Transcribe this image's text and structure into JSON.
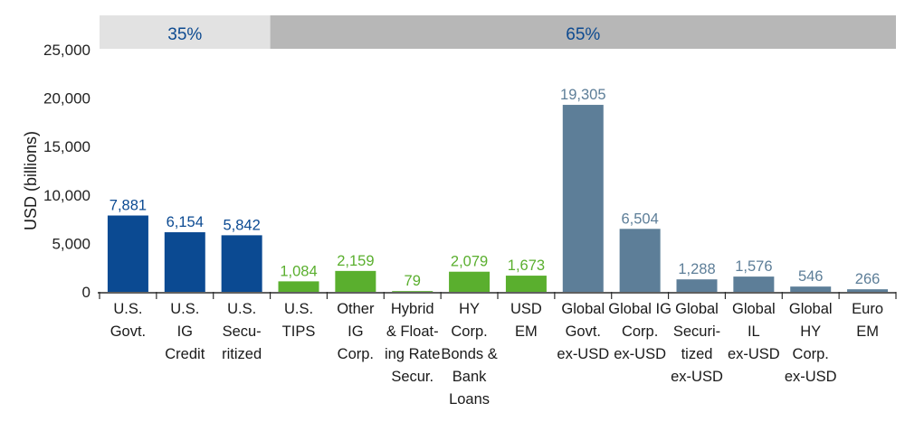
{
  "chart_data": {
    "type": "bar",
    "title": "",
    "xlabel": "",
    "ylabel": "USD (billions)",
    "ylim": [
      0,
      25000
    ],
    "yticks": [
      0,
      5000,
      10000,
      15000,
      20000,
      25000
    ],
    "ytick_labels": [
      "0",
      "5,000",
      "10,000",
      "15,000",
      "20,000",
      "25,000"
    ],
    "grid": false,
    "categories": [
      [
        "U.S.",
        "Govt."
      ],
      [
        "U.S.",
        "IG",
        "Credit"
      ],
      [
        "U.S.",
        "Secu-",
        "ritized"
      ],
      [
        "U.S.",
        "TIPS"
      ],
      [
        "Other",
        "IG",
        "Corp."
      ],
      [
        "Hybrid",
        "& Float-",
        "ing Rate",
        "Secur."
      ],
      [
        "HY",
        "Corp.",
        "Bonds &",
        "Bank",
        "Loans"
      ],
      [
        "USD",
        "EM"
      ],
      [
        "Global",
        "Govt.",
        "ex-USD"
      ],
      [
        "Global IG",
        "Corp.",
        "ex-USD"
      ],
      [
        "Global",
        "Securi-",
        "tized",
        "ex-USD"
      ],
      [
        "Global",
        "IL",
        "ex-USD"
      ],
      [
        "Global",
        "HY",
        "Corp.",
        "ex-USD"
      ],
      [
        "Euro",
        "EM"
      ]
    ],
    "values": [
      7881,
      6154,
      5842,
      1084,
      2159,
      79,
      2079,
      1673,
      19305,
      6504,
      1288,
      1576,
      546,
      266
    ],
    "value_labels": [
      "7,881",
      "6,154",
      "5,842",
      "1,084",
      "2,159",
      "79",
      "2,079",
      "1,673",
      "19,305",
      "6,504",
      "1,288",
      "1,576",
      "546",
      "266"
    ],
    "groups": [
      0,
      0,
      0,
      1,
      1,
      1,
      1,
      1,
      2,
      2,
      2,
      2,
      2,
      2
    ],
    "group_colors": [
      "#0b4a92",
      "#5aaf2e",
      "#5d7e98"
    ],
    "value_label_colors": [
      "#0b4a92",
      "#5aaf2e",
      "#5d7e98"
    ],
    "bands": [
      {
        "label": "35%",
        "from_index": 0,
        "to_index": 2,
        "color": "#e2e2e2"
      },
      {
        "label": "65%",
        "from_index": 3,
        "to_index": 13,
        "color": "#b7b7b7"
      }
    ]
  }
}
